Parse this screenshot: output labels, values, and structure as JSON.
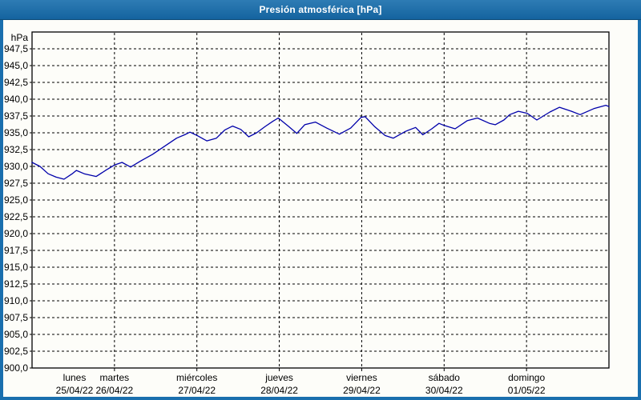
{
  "window": {
    "title": "Presión atmosférica [hPa]"
  },
  "colors": {
    "titlebar_top": "#2e7cb4",
    "titlebar_bottom": "#14639f",
    "frame_border": "#1a6fae",
    "plot_background": "#fdfdf9",
    "grid": "#000000",
    "axis": "#000000",
    "text": "#000000",
    "title_text": "#ffffff",
    "line": "#0000aa"
  },
  "chart_data": {
    "type": "line",
    "title": "Presión atmosférica [hPa]",
    "unit_label": "hPa",
    "ylabel": "hPa",
    "ylim": [
      900,
      950
    ],
    "ytick_step": 2.5,
    "ytick_labels_top_to_bottom": [
      "947,5",
      "945,0",
      "942,5",
      "940,0",
      "937,5",
      "935,0",
      "932,5",
      "930,0",
      "927,5",
      "925,0",
      "922,5",
      "920,0",
      "917,5",
      "915,0",
      "912,5",
      "910,0",
      "907,5",
      "905,0",
      "902,5",
      "900,0"
    ],
    "x_range_days": 7,
    "x_unit": "hours",
    "xlim_hours": [
      0,
      168
    ],
    "grid": true,
    "grid_style": "dashed",
    "legend": "none",
    "x_days": [
      {
        "name": "lunes",
        "date": "25/04/22"
      },
      {
        "name": "martes",
        "date": "26/04/22"
      },
      {
        "name": "miércoles",
        "date": "27/04/22"
      },
      {
        "name": "jueves",
        "date": "28/04/22"
      },
      {
        "name": "viernes",
        "date": "29/04/22"
      },
      {
        "name": "sábado",
        "date": "30/04/22"
      },
      {
        "name": "domingo",
        "date": "01/05/22"
      }
    ],
    "series": [
      {
        "name": "Presión atmosférica",
        "color": "#0000aa",
        "points_hours_hpa": [
          [
            0,
            930.6
          ],
          [
            2.3,
            930.0
          ],
          [
            4.7,
            928.9
          ],
          [
            7,
            928.4
          ],
          [
            9.3,
            928.1
          ],
          [
            11.7,
            928.9
          ],
          [
            12.9,
            929.4
          ],
          [
            15.2,
            928.9
          ],
          [
            18.7,
            928.5
          ],
          [
            21.7,
            929.5
          ],
          [
            24,
            930.2
          ],
          [
            26.2,
            930.6
          ],
          [
            28.7,
            929.9
          ],
          [
            31.6,
            930.8
          ],
          [
            35.1,
            931.8
          ],
          [
            38.6,
            933.0
          ],
          [
            42.1,
            934.2
          ],
          [
            44.4,
            934.7
          ],
          [
            46,
            935.1
          ],
          [
            48.1,
            934.6
          ],
          [
            50.9,
            933.8
          ],
          [
            53.7,
            934.2
          ],
          [
            56.1,
            935.4
          ],
          [
            58.4,
            936.0
          ],
          [
            60.8,
            935.5
          ],
          [
            63.1,
            934.4
          ],
          [
            65.4,
            935.0
          ],
          [
            67.8,
            935.9
          ],
          [
            70.1,
            936.7
          ],
          [
            71.7,
            937.2
          ],
          [
            74.8,
            935.9
          ],
          [
            77.1,
            934.9
          ],
          [
            79.4,
            936.2
          ],
          [
            82.5,
            936.6
          ],
          [
            85.8,
            935.7
          ],
          [
            89.5,
            934.8
          ],
          [
            92.8,
            935.7
          ],
          [
            95.8,
            937.3
          ],
          [
            97,
            937.4
          ],
          [
            99.8,
            935.9
          ],
          [
            102.8,
            934.6
          ],
          [
            105.2,
            934.2
          ],
          [
            108.7,
            935.2
          ],
          [
            111.7,
            935.8
          ],
          [
            113.8,
            934.7
          ],
          [
            116.4,
            935.6
          ],
          [
            118.5,
            936.4
          ],
          [
            120,
            936.1
          ],
          [
            123.2,
            935.6
          ],
          [
            126.7,
            936.8
          ],
          [
            129.7,
            937.2
          ],
          [
            133.2,
            936.4
          ],
          [
            134.9,
            936.2
          ],
          [
            137.4,
            936.9
          ],
          [
            139.1,
            937.7
          ],
          [
            141.6,
            938.2
          ],
          [
            144.2,
            937.9
          ],
          [
            147,
            936.9
          ],
          [
            150.8,
            938.1
          ],
          [
            153.6,
            938.8
          ],
          [
            157.1,
            938.2
          ],
          [
            159.6,
            937.7
          ],
          [
            163.6,
            938.6
          ],
          [
            167.1,
            939.1
          ],
          [
            168,
            938.9
          ]
        ]
      }
    ]
  }
}
